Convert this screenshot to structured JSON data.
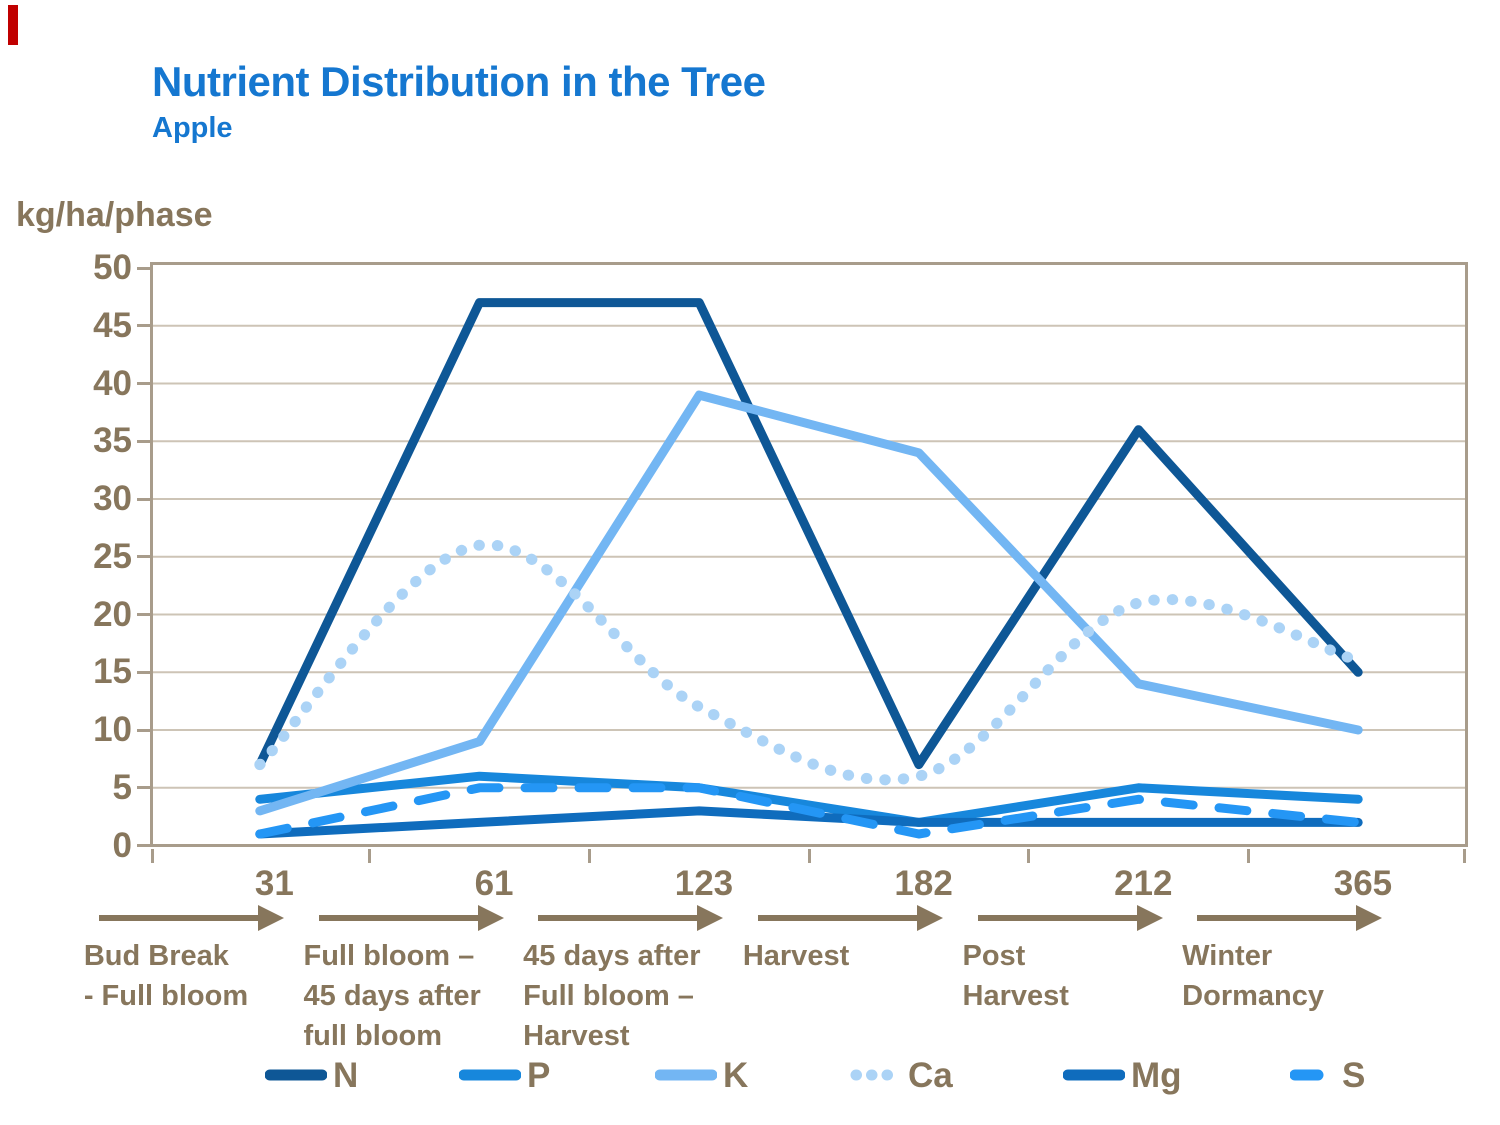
{
  "slide": {
    "title": "Nutrient Distribution in the Tree",
    "subtitle": "Apple",
    "accent_color": "#c00000",
    "title_color": "#1577d0",
    "text_color": "#87765c"
  },
  "chart_data": {
    "type": "line",
    "title": "Nutrient Distribution in the Tree",
    "subtitle": "Apple",
    "ylabel": "kg/ha/phase",
    "ylim": [
      0,
      50
    ],
    "yticks": [
      0,
      5,
      10,
      15,
      20,
      25,
      30,
      35,
      40,
      45,
      50
    ],
    "grid": "horizontal",
    "legend_position": "bottom",
    "categories": [
      "31",
      "61",
      "123",
      "182",
      "212",
      "365"
    ],
    "x_phases": [
      {
        "day": "31",
        "label_lines": [
          "Bud Break",
          "- Full bloom"
        ]
      },
      {
        "day": "61",
        "label_lines": [
          "Full bloom –",
          "45 days after",
          "full bloom"
        ]
      },
      {
        "day": "123",
        "label_lines": [
          "45 days after",
          "Full bloom –",
          "Harvest"
        ]
      },
      {
        "day": "182",
        "label_lines": [
          "Harvest"
        ]
      },
      {
        "day": "212",
        "label_lines": [
          "Post",
          "Harvest"
        ]
      },
      {
        "day": "365",
        "label_lines": [
          "Winter",
          "Dormancy"
        ]
      }
    ],
    "series": [
      {
        "name": "N",
        "color": "#0e5796",
        "style": "solid",
        "smooth": false,
        "values": [
          7,
          47,
          47,
          7,
          36,
          15
        ]
      },
      {
        "name": "P",
        "color": "#1787dc",
        "style": "solid",
        "smooth": false,
        "values": [
          4,
          6,
          5,
          2,
          5,
          4
        ]
      },
      {
        "name": "K",
        "color": "#73b6f3",
        "style": "solid",
        "smooth": false,
        "values": [
          3,
          9,
          39,
          34,
          14,
          10
        ]
      },
      {
        "name": "Ca",
        "color": "#abd3f6",
        "style": "dotted",
        "smooth": true,
        "values": [
          7,
          26,
          12,
          6,
          21,
          16
        ]
      },
      {
        "name": "Mg",
        "color": "#0f6cbd",
        "style": "solid",
        "smooth": false,
        "values": [
          1,
          2,
          3,
          2,
          2,
          2
        ]
      },
      {
        "name": "S",
        "color": "#2496f5",
        "style": "dashed",
        "smooth": false,
        "values": [
          1,
          5,
          5,
          1,
          4,
          2
        ]
      }
    ]
  }
}
